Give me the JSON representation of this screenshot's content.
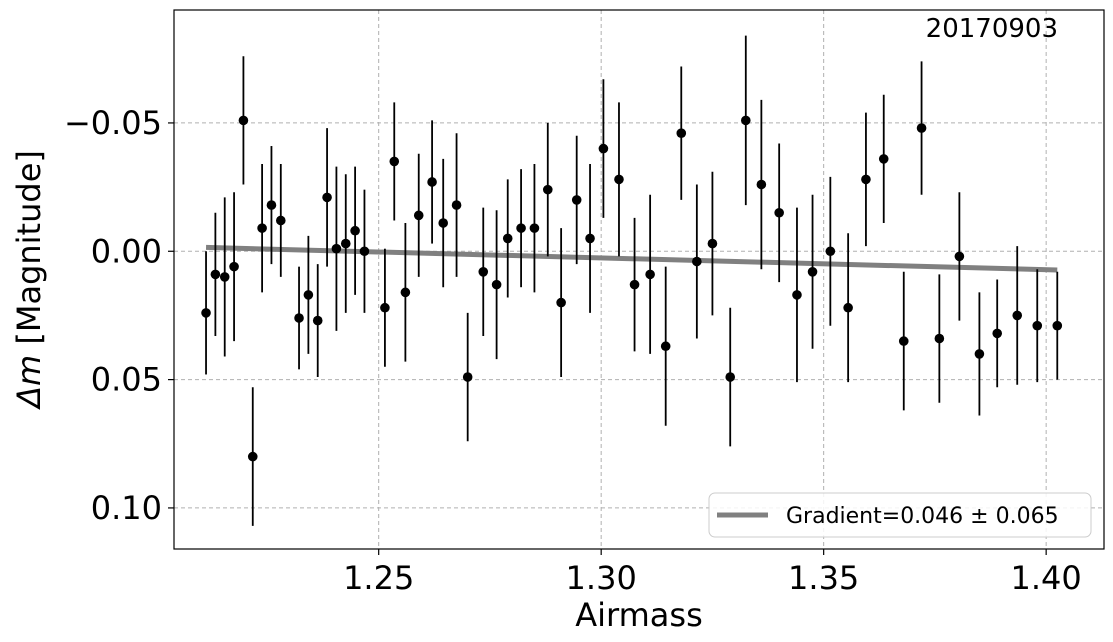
{
  "chart_data": {
    "type": "scatter",
    "xlabel": "Airmass",
    "ylabel_symbol": "Δm",
    "ylabel_text": " [Magnitude]",
    "annotation": "20170903",
    "xlim": [
      1.204,
      1.413
    ],
    "ylim": [
      0.116,
      -0.094
    ],
    "y_inverted": true,
    "grid": true,
    "legend_placement": "lower-right",
    "x_ticks": [
      {
        "value": 1.25,
        "label": "1.25"
      },
      {
        "value": 1.3,
        "label": "1.30"
      },
      {
        "value": 1.35,
        "label": "1.35"
      },
      {
        "value": 1.4,
        "label": "1.40"
      }
    ],
    "y_ticks": [
      {
        "value": -0.05,
        "label": "−0.05"
      },
      {
        "value": 0.0,
        "label": "0.00"
      },
      {
        "value": 0.05,
        "label": "0.05"
      },
      {
        "value": 0.1,
        "label": "0.10"
      }
    ],
    "points": {
      "color": "#000000",
      "x": [
        1.2112,
        1.2133,
        1.2154,
        1.2175,
        1.2196,
        1.2217,
        1.2238,
        1.2259,
        1.228,
        1.2321,
        1.2342,
        1.2363,
        1.2384,
        1.2405,
        1.2426,
        1.2447,
        1.2468,
        1.2514,
        1.2535,
        1.256,
        1.259,
        1.262,
        1.2645,
        1.2675,
        1.27,
        1.2735,
        1.2765,
        1.279,
        1.282,
        1.285,
        1.288,
        1.291,
        1.2945,
        1.2975,
        1.3005,
        1.304,
        1.3075,
        1.311,
        1.3145,
        1.318,
        1.3215,
        1.325,
        1.329,
        1.3325,
        1.336,
        1.34,
        1.344,
        1.3475,
        1.3515,
        1.3555,
        1.3595,
        1.3635,
        1.368,
        1.372,
        1.376,
        1.3805,
        1.385,
        1.389,
        1.3935,
        1.398,
        1.4025
      ],
      "y": [
        0.024,
        0.009,
        0.01,
        0.006,
        -0.051,
        0.08,
        -0.009,
        -0.018,
        -0.012,
        0.026,
        0.017,
        0.027,
        -0.021,
        -0.001,
        -0.003,
        -0.008,
        0.0,
        0.022,
        -0.035,
        0.016,
        -0.014,
        -0.027,
        -0.011,
        -0.018,
        0.049,
        0.008,
        0.013,
        -0.005,
        -0.009,
        -0.009,
        -0.024,
        0.02,
        -0.02,
        -0.005,
        -0.04,
        -0.028,
        0.013,
        0.009,
        0.037,
        -0.046,
        0.004,
        -0.003,
        0.049,
        -0.051,
        -0.026,
        -0.015,
        0.017,
        0.008,
        0.0,
        0.022,
        -0.028,
        -0.036,
        0.035,
        -0.048,
        0.034,
        0.002,
        0.04,
        0.032,
        0.025,
        0.029,
        0.029
      ],
      "yerr": [
        0.024,
        0.024,
        0.031,
        0.029,
        0.025,
        0.027,
        0.025,
        0.023,
        0.022,
        0.02,
        0.023,
        0.022,
        0.027,
        0.032,
        0.027,
        0.025,
        0.024,
        0.023,
        0.023,
        0.027,
        0.024,
        0.024,
        0.025,
        0.028,
        0.025,
        0.025,
        0.029,
        0.023,
        0.023,
        0.025,
        0.026,
        0.029,
        0.025,
        0.029,
        0.027,
        0.03,
        0.026,
        0.031,
        0.031,
        0.026,
        0.03,
        0.028,
        0.027,
        0.033,
        0.033,
        0.027,
        0.034,
        0.03,
        0.029,
        0.029,
        0.026,
        0.025,
        0.027,
        0.026,
        0.025,
        0.025,
        0.024,
        0.021,
        0.027,
        0.022,
        0.021
      ]
    },
    "fit_line": {
      "name": "Gradient=0.046 ± 0.065",
      "color": "#808080",
      "x": [
        1.2112,
        1.4025
      ],
      "y": [
        -0.0015,
        0.0073
      ]
    }
  }
}
